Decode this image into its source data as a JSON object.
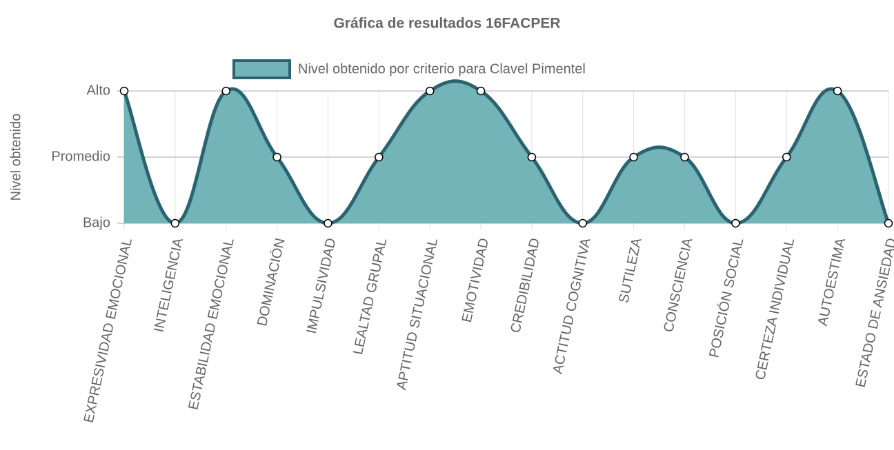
{
  "chart_data": {
    "type": "line",
    "title": "Gráfica de resultados 16FACPER",
    "y_label": "Nivel obtenido",
    "categories": [
      "EXPRESIVIDAD EMOCIONAL",
      "INTELIGENCIA",
      "ESTABILIDAD EMOCIONAL",
      "DOMINACIÓN",
      "IMPULSIVIDAD",
      "LEALTAD GRUPAL",
      "APTITUD SITUACIONAL",
      "EMOTIVIDAD",
      "CREDIBILIDAD",
      "ACTITUD COGNITIVA",
      "SUTILEZA",
      "CONSCIENCIA",
      "POSICIÓN SOCIAL",
      "CERTEZA INDIVIDUAL",
      "AUTOESTIMA",
      "ESTADO DE ANSIEDAD"
    ],
    "series": [
      {
        "name": "Nivel obtenido por criterio para Clavel Pimentel",
        "color": "#2b6470",
        "fill_color": "#72b4b8",
        "values": [
          3,
          1,
          3,
          2,
          1,
          2,
          3,
          3,
          2,
          1,
          2,
          2,
          1,
          2,
          3,
          1
        ]
      }
    ],
    "ylim": [
      1,
      3
    ],
    "yticks": [
      {
        "value": 1,
        "label": "Bajo"
      },
      {
        "value": 2,
        "label": "Promedio"
      },
      {
        "value": 3,
        "label": "Alto"
      }
    ],
    "grid": true,
    "legend": "top"
  }
}
